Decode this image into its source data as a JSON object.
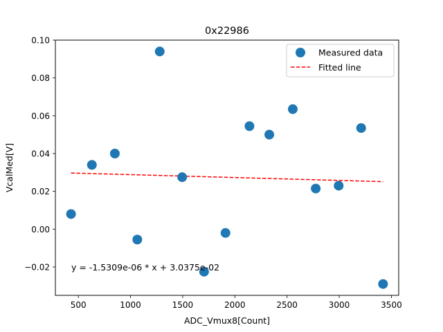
{
  "chart_data": {
    "type": "scatter",
    "title": "0x22986",
    "xlabel": "ADC_Vmux8[Count]",
    "ylabel": "VcalMed[V]",
    "xlim": [
      280,
      3570
    ],
    "ylim": [
      -0.035,
      0.1
    ],
    "xticks": [
      500,
      1000,
      1500,
      2000,
      2500,
      3000,
      3500
    ],
    "xtick_labels": [
      "500",
      "1000",
      "1500",
      "2000",
      "2500",
      "3000",
      "3500"
    ],
    "yticks": [
      -0.02,
      0.0,
      0.02,
      0.04,
      0.06,
      0.08,
      0.1
    ],
    "ytick_labels": [
      "−0.02",
      "0.00",
      "0.02",
      "0.04",
      "0.06",
      "0.08",
      "0.10"
    ],
    "grid": false,
    "legend_position": "top-right",
    "series": [
      {
        "name": "Measured data",
        "kind": "scatter",
        "color": "#1f77b4",
        "x": [
          430,
          630,
          850,
          1065,
          1280,
          1495,
          1705,
          1910,
          2140,
          2330,
          2555,
          2775,
          2995,
          3210,
          3420
        ],
        "y": [
          0.008,
          0.034,
          0.04,
          -0.0055,
          0.094,
          0.0275,
          -0.0225,
          -0.002,
          0.0545,
          0.05,
          0.0635,
          0.0215,
          0.023,
          0.0535,
          -0.029
        ]
      },
      {
        "name": "Fitted line",
        "kind": "line",
        "style": "dashed",
        "color": "#ff0000",
        "slope": -1.5309e-06,
        "intercept": 0.030375,
        "x_range": [
          430,
          3420
        ]
      }
    ],
    "annotation": "y = -1.5309e-06 * x + 3.0375e-02"
  }
}
